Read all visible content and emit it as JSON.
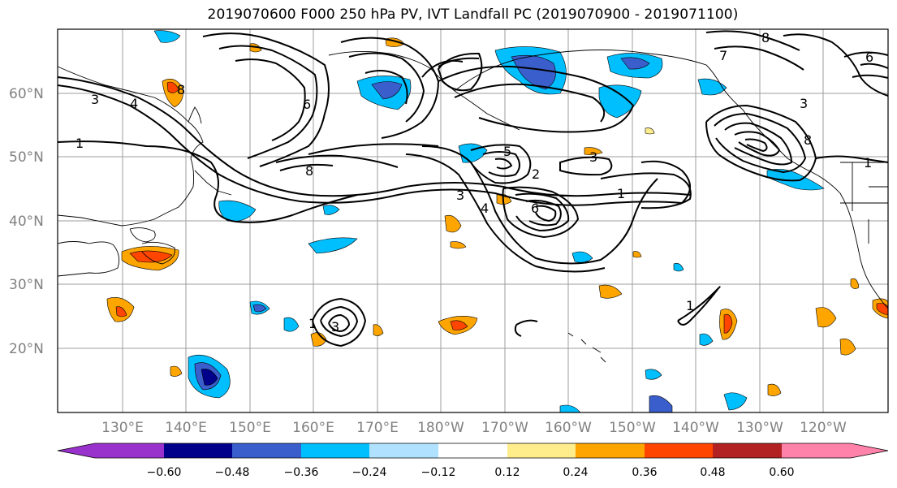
{
  "title": "2019070600 F000 250 hPa PV, IVT Landfall PC (2019070900 - 2019071100)",
  "lat_labels": [
    "60°N",
    "50°N",
    "40°N",
    "30°N",
    "20°N"
  ],
  "lon_labels": [
    "130°E",
    "140°E",
    "150°E",
    "160°E",
    "170°E",
    "180°W",
    "170°W",
    "160°W",
    "150°W",
    "140°W",
    "130°W",
    "120°W"
  ],
  "contour_labels": [
    "1",
    "2",
    "3",
    "4",
    "5",
    "6",
    "7",
    "8"
  ],
  "colorbar": {
    "ticks": [
      "−0.60",
      "−0.48",
      "−0.36",
      "−0.24",
      "−0.12",
      "0.12",
      "0.24",
      "0.36",
      "0.48",
      "0.60"
    ],
    "colors": [
      "#9932cc",
      "#00008b",
      "#3a5fcd",
      "#00bfff",
      "#b0e2ff",
      "#ffffff",
      "#ffec8b",
      "#ffa500",
      "#ff4500",
      "#b22222",
      "#ff82ab"
    ]
  }
}
